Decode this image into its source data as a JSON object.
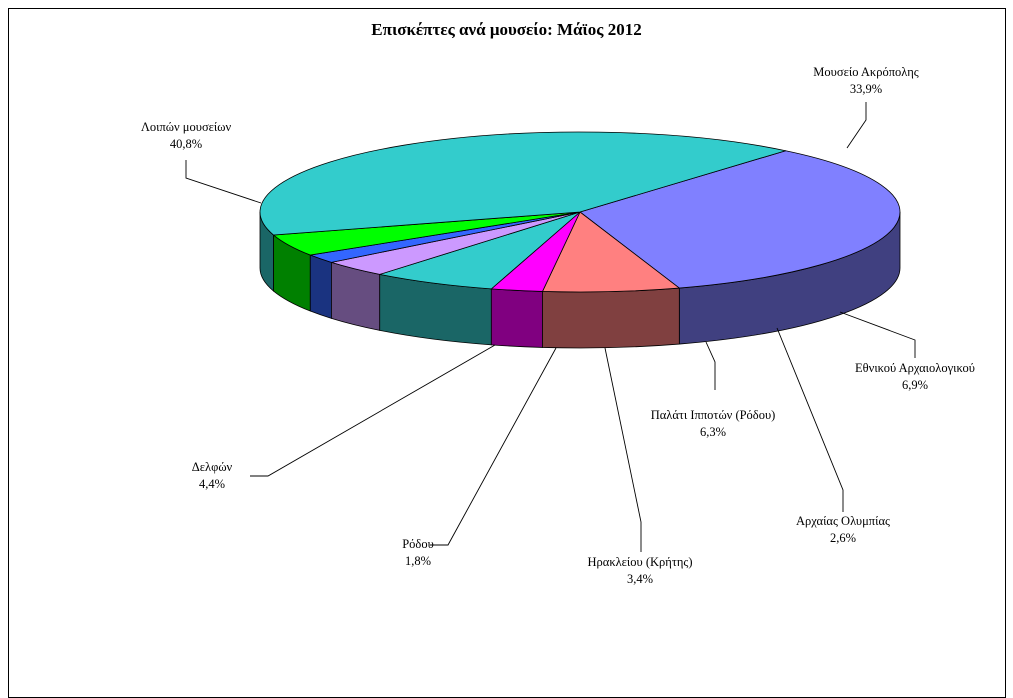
{
  "chart_data": {
    "type": "pie",
    "title": "Επισκέπτες ανά μουσείο: Μάϊος 2012",
    "slices": [
      {
        "name": "Μουσείο Ακρόπολης",
        "value": 33.9,
        "label": "33,9%",
        "color": "#8080FF"
      },
      {
        "name": "Εθνικού Αρχαιολογικού",
        "value": 6.9,
        "label": "6,9%",
        "color": "#FF8080"
      },
      {
        "name": "Αρχαίας Ολυμπίας",
        "value": 2.6,
        "label": "2,6%",
        "color": "#FF00FF"
      },
      {
        "name": "Παλάτι Ιπποτών (Ρόδου)",
        "value": 6.3,
        "label": "6,3%",
        "color": "#33CCCC"
      },
      {
        "name": "Ηρακλείου (Κρήτης)",
        "value": 3.4,
        "label": "3,4%",
        "color": "#CC99FF"
      },
      {
        "name": "Ρόδου",
        "value": 1.8,
        "label": "1,8%",
        "color": "#3366FF"
      },
      {
        "name": "Δελφών",
        "value": 4.4,
        "label": "4,4%",
        "color": "#00FF00"
      },
      {
        "name": "Λοιπών μουσείων",
        "value": 40.8,
        "label": "40,8%",
        "color": "#33CCCC"
      }
    ],
    "style": "3d-pie"
  }
}
